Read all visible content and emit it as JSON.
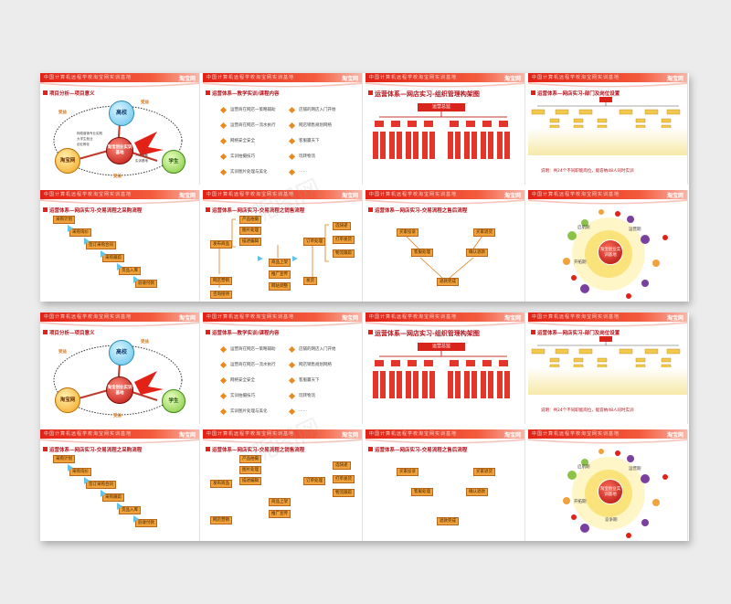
{
  "header": {
    "subtitle": "中国计算机远程学校淘宝网实训基地",
    "logo": "淘宝网"
  },
  "slides": {
    "s1": {
      "title": "项目分析—项目意义",
      "nodes": [
        "高校",
        "淘宝网",
        "学生"
      ],
      "center": "淘宝创业实训基地",
      "gain_labels": [
        "受益",
        "受益",
        "受益"
      ],
      "arrow_texts": [
        "网络营销专业实践",
        "大学生就业",
        "创业孵化",
        "人才储备",
        "实训基地"
      ]
    },
    "s2": {
      "title": "运营体系—教学实训/课程内容",
      "left_items": [
        "运营商在网店一策略辅助",
        "运营商在网店一流水执行",
        "网络安全安全",
        "实训拍摄技巧",
        "实训图片处理与美化"
      ],
      "right_items": [
        "店铺的网店入门开始",
        "网店销售规划网络",
        "客服赢天下",
        "玩转物流",
        "……"
      ]
    },
    "s3": {
      "title": "运营体系—网店实习-组织管理构架图",
      "root": "运营总监"
    },
    "s4": {
      "title": "运营体系—网店实习-部门及岗位设置",
      "caption": "说明：共24个不同职能岗位，能容纳48人同时实训"
    },
    "s5": {
      "title": "运营体系—网店实习-交易流程之采购流程",
      "steps": [
        "采购计划",
        "采购询价",
        "签订采购合同",
        "采购跟踪",
        "货品入库",
        "验收付款"
      ]
    },
    "s6": {
      "title": "运营体系—网店实习-交易流程之销售流程",
      "left_col": [
        "发布商品",
        "网店营销",
        "咨询接待",
        "订单确认"
      ],
      "mid_top": [
        "产品拍摄",
        "图片处理",
        "描述编辑"
      ],
      "mid_bottom": [
        "商品上架",
        "推广宣传",
        "网站调整",
        "前台发货"
      ],
      "right_col": [
        "订单处理",
        "发货",
        "售后服务"
      ],
      "far_right": [
        "选快递",
        "打单发货",
        "物流跟踪"
      ]
    },
    "s7": {
      "title": "运营体系—网店实习-交易流程之售后流程",
      "boxes": [
        "买家投诉",
        "买家退货",
        "客服处理",
        "确认退款",
        "退款完成"
      ]
    },
    "s8": {
      "center": "淘宝创业实训基地",
      "phases": [
        "启航期",
        "运营期",
        "开拓期",
        "竞争期"
      ]
    }
  },
  "watermark": "昵图网"
}
